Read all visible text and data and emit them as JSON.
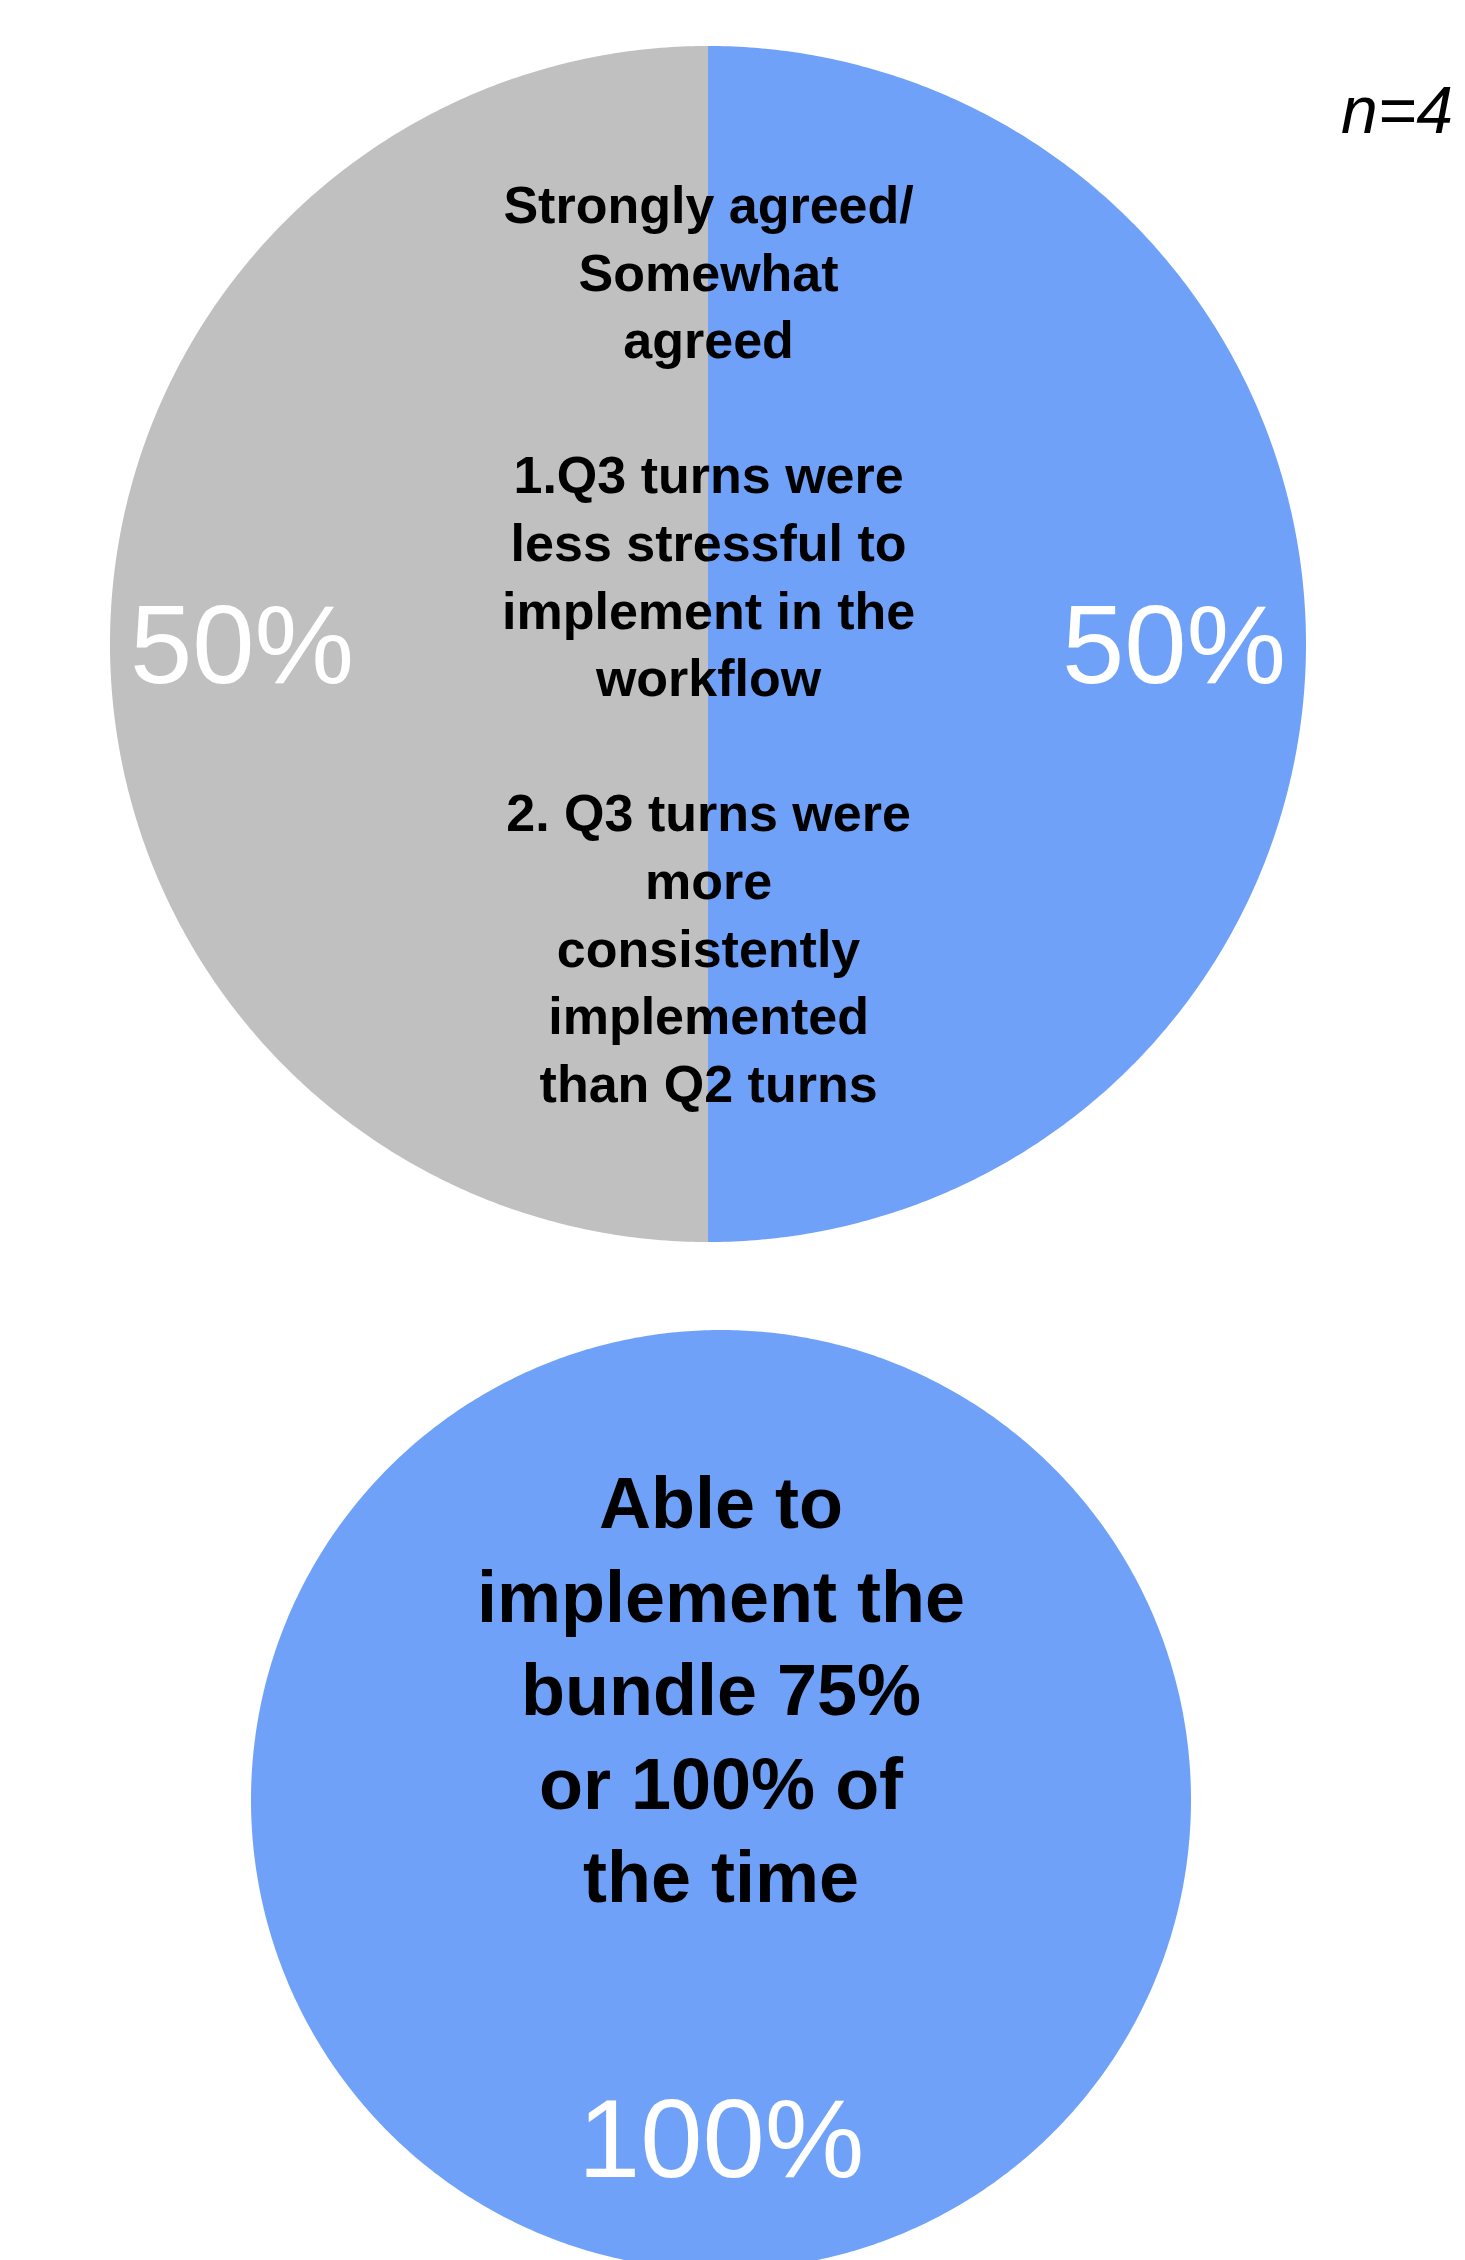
{
  "chart_data": [
    {
      "type": "pie",
      "categories": [
        null,
        null
      ],
      "values": [
        50,
        50
      ],
      "colors": [
        "#6fa1f8",
        "#c0c0c0"
      ],
      "value_labels": [
        "50%",
        "50%"
      ],
      "annotations": [
        "Strongly agreed/\nSomewhat\nagreed\n\n1.Q3 turns were\nless stressful to\nimplement in the\nworkflow\n\n2. Q3 turns were\nmore\nconsistently\nimplemented\nthan Q2 turns",
        "n=4"
      ]
    },
    {
      "type": "pie",
      "categories": [
        null
      ],
      "values": [
        100
      ],
      "colors": [
        "#6fa1f8"
      ],
      "value_labels": [
        "100%"
      ],
      "annotations": [
        "Able to\nimplement the\nbundle 75%\nor 100% of\nthe time"
      ]
    }
  ]
}
